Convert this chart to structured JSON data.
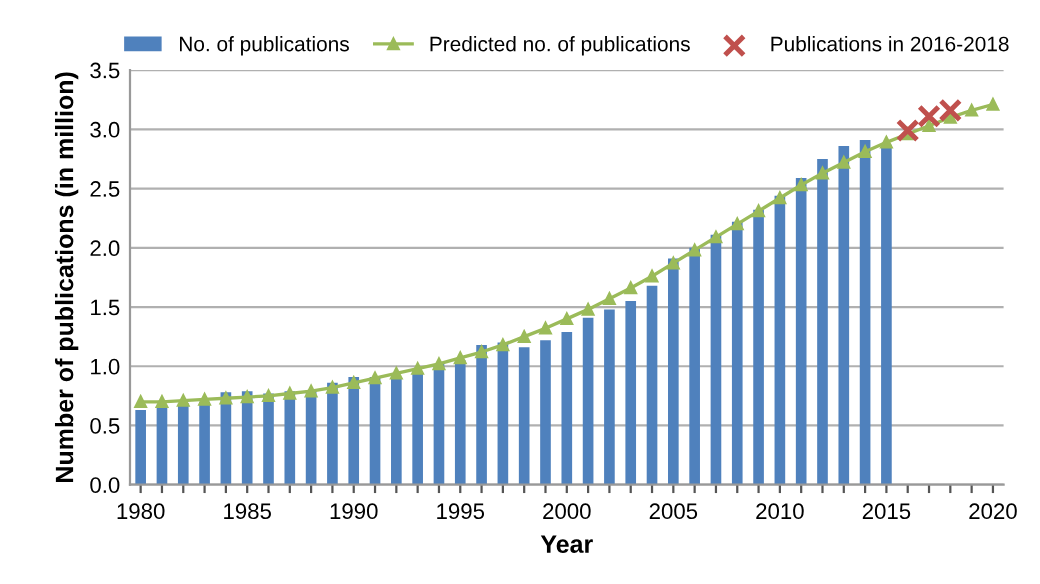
{
  "chart_data": {
    "type": "bar",
    "xlabel": "Year",
    "ylabel": "Number of publications (in million)",
    "xlim": [
      1979.5,
      2020.5
    ],
    "xticks": [
      {
        "value": 1980,
        "label": "1980"
      },
      {
        "value": 1981,
        "label": null
      },
      {
        "value": 1982,
        "label": null
      },
      {
        "value": 1983,
        "label": null
      },
      {
        "value": 1984,
        "label": null
      },
      {
        "value": 1985,
        "label": "1985"
      },
      {
        "value": 1986,
        "label": null
      },
      {
        "value": 1987,
        "label": null
      },
      {
        "value": 1988,
        "label": null
      },
      {
        "value": 1989,
        "label": null
      },
      {
        "value": 1990,
        "label": "1990"
      },
      {
        "value": 1991,
        "label": null
      },
      {
        "value": 1992,
        "label": null
      },
      {
        "value": 1993,
        "label": null
      },
      {
        "value": 1994,
        "label": null
      },
      {
        "value": 1995,
        "label": "1995"
      },
      {
        "value": 1996,
        "label": null
      },
      {
        "value": 1997,
        "label": null
      },
      {
        "value": 1998,
        "label": null
      },
      {
        "value": 1999,
        "label": null
      },
      {
        "value": 2000,
        "label": "2000"
      },
      {
        "value": 2001,
        "label": null
      },
      {
        "value": 2002,
        "label": null
      },
      {
        "value": 2003,
        "label": null
      },
      {
        "value": 2004,
        "label": null
      },
      {
        "value": 2005,
        "label": "2005"
      },
      {
        "value": 2006,
        "label": null
      },
      {
        "value": 2007,
        "label": null
      },
      {
        "value": 2008,
        "label": null
      },
      {
        "value": 2009,
        "label": null
      },
      {
        "value": 2010,
        "label": "2010"
      },
      {
        "value": 2011,
        "label": null
      },
      {
        "value": 2012,
        "label": null
      },
      {
        "value": 2013,
        "label": null
      },
      {
        "value": 2014,
        "label": null
      },
      {
        "value": 2015,
        "label": "2015"
      },
      {
        "value": 2016,
        "label": null
      },
      {
        "value": 2017,
        "label": null
      },
      {
        "value": 2018,
        "label": null
      },
      {
        "value": 2019,
        "label": null
      },
      {
        "value": 2020,
        "label": "2020"
      }
    ],
    "ylim": [
      0,
      3.5
    ],
    "yticks": [
      {
        "value": 0,
        "label": "0.0"
      },
      {
        "value": 0.5,
        "label": "0.5"
      },
      {
        "value": 1,
        "label": "1.0"
      },
      {
        "value": 1.5,
        "label": "1.5"
      },
      {
        "value": 2,
        "label": "2.0"
      },
      {
        "value": 2.5,
        "label": "2.5"
      },
      {
        "value": 3,
        "label": "3.0"
      },
      {
        "value": 3.5,
        "label": "3.5"
      }
    ],
    "grid": "y",
    "legend": "top",
    "series": [
      {
        "name": "No. of publications",
        "color": "#4f81bd",
        "x": [
          1980,
          1981,
          1982,
          1983,
          1984,
          1985,
          1986,
          1987,
          1988,
          1989,
          1990,
          1991,
          1992,
          1993,
          1994,
          1995,
          1996,
          1997,
          1998,
          1999,
          2000,
          2001,
          2002,
          2003,
          2004,
          2005,
          2006,
          2007,
          2008,
          2009,
          2010,
          2011,
          2012,
          2013,
          2014,
          2015
        ],
        "values": [
          0.63,
          0.66,
          0.69,
          0.7,
          0.78,
          0.79,
          0.77,
          0.79,
          0.8,
          0.86,
          0.91,
          0.91,
          0.91,
          0.96,
          1.02,
          1.05,
          1.18,
          1.2,
          1.16,
          1.22,
          1.29,
          1.41,
          1.48,
          1.55,
          1.68,
          1.91,
          2.0,
          2.11,
          2.22,
          2.32,
          2.44,
          2.59,
          2.75,
          2.86,
          2.91,
          2.87
        ]
      },
      {
        "name": "Predicted no. of publications",
        "type": "line",
        "color": "#9bbb59",
        "marker": "triangle",
        "line_style": "solid",
        "x": [
          1980,
          1981,
          1982,
          1983,
          1984,
          1985,
          1986,
          1987,
          1988,
          1989,
          1990,
          1991,
          1992,
          1993,
          1994,
          1995,
          1996,
          1997,
          1998,
          1999,
          2000,
          2001,
          2002,
          2003,
          2004,
          2005,
          2006,
          2007,
          2008,
          2009,
          2010,
          2011,
          2012,
          2013,
          2014,
          2015,
          2016,
          2017,
          2018,
          2019,
          2020
        ],
        "values": [
          0.7,
          0.7,
          0.71,
          0.72,
          0.73,
          0.74,
          0.75,
          0.77,
          0.79,
          0.82,
          0.86,
          0.9,
          0.94,
          0.98,
          1.02,
          1.07,
          1.12,
          1.18,
          1.25,
          1.32,
          1.4,
          1.48,
          1.57,
          1.66,
          1.76,
          1.87,
          1.98,
          2.09,
          2.2,
          2.31,
          2.42,
          2.53,
          2.63,
          2.72,
          2.81,
          2.89,
          2.96,
          3.03,
          3.1,
          3.16,
          3.21
        ]
      },
      {
        "name": "Publications in 2016-2018",
        "type": "scatter",
        "color": "#c0504d",
        "marker": "cross",
        "x": [
          2016,
          2017,
          2018
        ],
        "values": [
          2.99,
          3.11,
          3.16
        ]
      }
    ]
  }
}
